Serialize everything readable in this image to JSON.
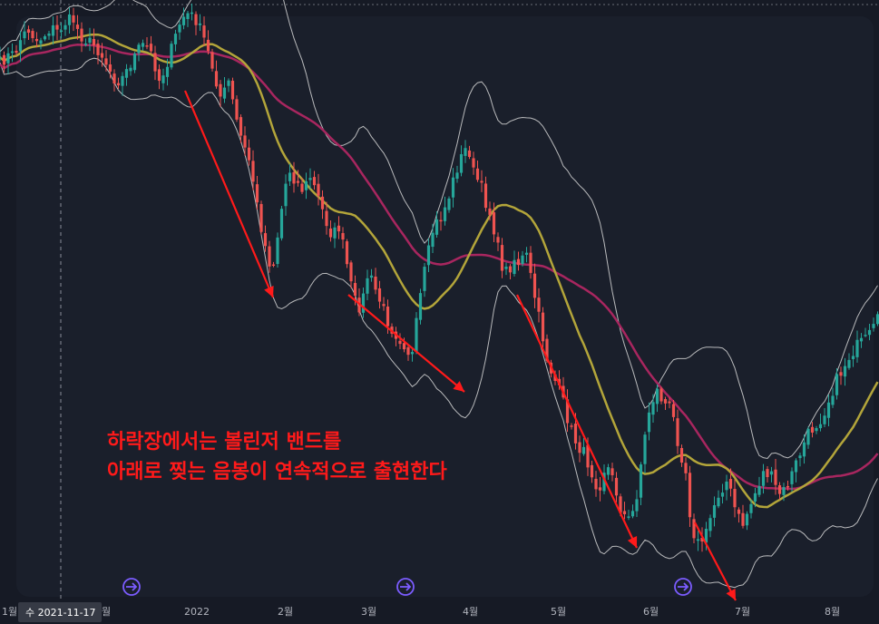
{
  "chart_data": {
    "type": "candlestick",
    "x_axis": {
      "ticks": [
        "1월",
        "월",
        "2022",
        "2월",
        "3월",
        "4월",
        "5월",
        "6월",
        "7월",
        "8월"
      ]
    },
    "crosshair_date": "수 2021-11-17",
    "annotation": {
      "line1": "하락장에서는 볼린저 밴드를",
      "line2": "아래로 찢는 음봉이 연속적으로 출현한다"
    },
    "series_colors": {
      "up": "#26a69a",
      "down": "#ef5350",
      "middle_band": "#b3a53a",
      "long_ma": "#a8265f",
      "bands": "#d6d6d6",
      "arrows": "#ff1a1a",
      "event_markers": "#7b5cff"
    },
    "event_markers": [
      {
        "icon": "dividend-event-icon"
      },
      {
        "icon": "dividend-event-icon"
      },
      {
        "icon": "dividend-event-icon"
      }
    ],
    "price_path": [
      [
        0,
        70
      ],
      [
        8,
        62
      ],
      [
        16,
        60
      ],
      [
        24,
        40
      ],
      [
        32,
        32
      ],
      [
        40,
        45
      ],
      [
        48,
        40
      ],
      [
        56,
        30
      ],
      [
        64,
        35
      ],
      [
        72,
        25
      ],
      [
        80,
        20
      ],
      [
        88,
        38
      ],
      [
        96,
        45
      ],
      [
        104,
        50
      ],
      [
        112,
        60
      ],
      [
        120,
        75
      ],
      [
        128,
        90
      ],
      [
        136,
        85
      ],
      [
        144,
        70
      ],
      [
        152,
        55
      ],
      [
        160,
        48
      ],
      [
        168,
        62
      ],
      [
        176,
        90
      ],
      [
        184,
        70
      ],
      [
        192,
        45
      ],
      [
        200,
        20
      ],
      [
        208,
        15
      ],
      [
        216,
        22
      ],
      [
        224,
        40
      ],
      [
        230,
        60
      ],
      [
        236,
        80
      ],
      [
        244,
        110
      ],
      [
        252,
        90
      ],
      [
        260,
        130
      ],
      [
        268,
        160
      ],
      [
        276,
        180
      ],
      [
        284,
        230
      ],
      [
        292,
        270
      ],
      [
        300,
        300
      ],
      [
        306,
        260
      ],
      [
        312,
        220
      ],
      [
        318,
        185
      ],
      [
        326,
        200
      ],
      [
        334,
        210
      ],
      [
        342,
        195
      ],
      [
        350,
        215
      ],
      [
        358,
        240
      ],
      [
        366,
        260
      ],
      [
        374,
        250
      ],
      [
        382,
        290
      ],
      [
        390,
        330
      ],
      [
        398,
        340
      ],
      [
        406,
        300
      ],
      [
        414,
        320
      ],
      [
        422,
        340
      ],
      [
        430,
        360
      ],
      [
        438,
        370
      ],
      [
        446,
        380
      ],
      [
        454,
        395
      ],
      [
        460,
        350
      ],
      [
        466,
        310
      ],
      [
        472,
        280
      ],
      [
        478,
        250
      ],
      [
        486,
        240
      ],
      [
        494,
        220
      ],
      [
        502,
        190
      ],
      [
        510,
        170
      ],
      [
        516,
        160
      ],
      [
        522,
        190
      ],
      [
        530,
        205
      ],
      [
        536,
        225
      ],
      [
        542,
        240
      ],
      [
        548,
        270
      ],
      [
        554,
        295
      ],
      [
        560,
        300
      ],
      [
        566,
        285
      ],
      [
        572,
        290
      ],
      [
        580,
        280
      ],
      [
        588,
        320
      ],
      [
        596,
        360
      ],
      [
        604,
        400
      ],
      [
        612,
        420
      ],
      [
        620,
        440
      ],
      [
        628,
        470
      ],
      [
        636,
        490
      ],
      [
        644,
        500
      ],
      [
        652,
        520
      ],
      [
        660,
        540
      ],
      [
        668,
        510
      ],
      [
        676,
        530
      ],
      [
        684,
        560
      ],
      [
        692,
        575
      ],
      [
        700,
        560
      ],
      [
        708,
        500
      ],
      [
        716,
        450
      ],
      [
        724,
        430
      ],
      [
        732,
        445
      ],
      [
        740,
        450
      ],
      [
        748,
        490
      ],
      [
        756,
        520
      ],
      [
        762,
        580
      ],
      [
        770,
        600
      ],
      [
        778,
        590
      ],
      [
        786,
        560
      ],
      [
        794,
        540
      ],
      [
        802,
        530
      ],
      [
        810,
        560
      ],
      [
        818,
        580
      ],
      [
        826,
        560
      ],
      [
        834,
        540
      ],
      [
        842,
        520
      ],
      [
        850,
        525
      ],
      [
        858,
        545
      ],
      [
        866,
        540
      ],
      [
        874,
        520
      ],
      [
        882,
        500
      ],
      [
        890,
        480
      ],
      [
        898,
        470
      ],
      [
        906,
        460
      ],
      [
        914,
        440
      ],
      [
        922,
        420
      ],
      [
        930,
        405
      ],
      [
        938,
        390
      ],
      [
        946,
        380
      ],
      [
        954,
        375
      ],
      [
        962,
        365
      ],
      [
        969,
        350
      ]
    ]
  }
}
